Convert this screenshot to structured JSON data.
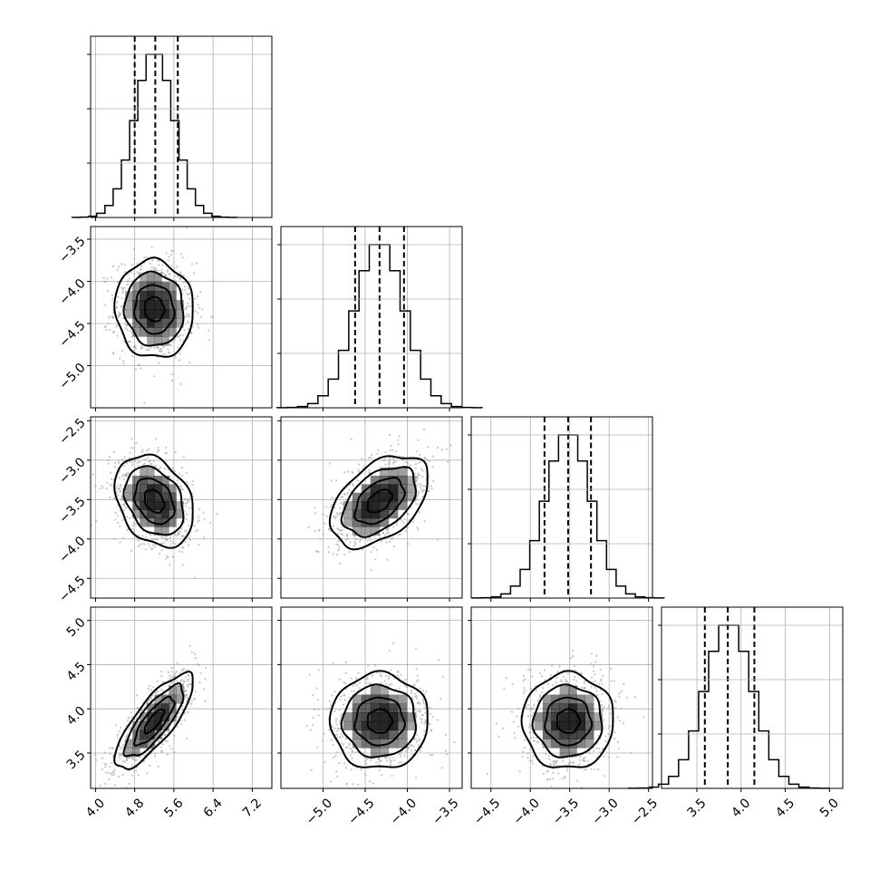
{
  "chart_data": {
    "type": "corner",
    "title": "",
    "parameters": [
      {
        "name": "",
        "range": [
          3.9,
          7.6
        ],
        "ticks": [
          4.0,
          4.8,
          5.6,
          6.4,
          7.2
        ],
        "tick_labels": [
          "4.0",
          "4.8",
          "5.6",
          "6.4",
          "7.2"
        ],
        "mean": 5.2,
        "sd": 0.4,
        "quantiles": [
          4.8,
          5.22,
          5.68
        ]
      },
      {
        "name": "",
        "range": [
          -5.5,
          -3.35
        ],
        "ticks": [
          -5.0,
          -4.5,
          -4.0,
          -3.5
        ],
        "tick_labels": [
          "−5.0",
          "−4.5",
          "−4.0",
          "−3.5"
        ],
        "mean": -4.33,
        "sd": 0.29,
        "quantiles": [
          -4.62,
          -4.33,
          -4.04
        ]
      },
      {
        "name": "",
        "range": [
          -4.75,
          -2.45
        ],
        "ticks": [
          -4.5,
          -4.0,
          -3.5,
          -3.0,
          -2.5
        ],
        "tick_labels": [
          "−4.5",
          "−4.0",
          "−3.5",
          "−3.0",
          "−2.5"
        ],
        "mean": -3.52,
        "sd": 0.29,
        "quantiles": [
          -3.82,
          -3.52,
          -3.23
        ]
      },
      {
        "name": "",
        "range": [
          3.1,
          5.15
        ],
        "ticks": [
          3.5,
          4.0,
          4.5,
          5.0
        ],
        "tick_labels": [
          "3.5",
          "4.0",
          "4.5",
          "5.0"
        ],
        "mean": 3.86,
        "sd": 0.27,
        "quantiles": [
          3.59,
          3.85,
          4.15
        ]
      }
    ],
    "correlations": {
      "1-0": -0.05,
      "2-0": -0.3,
      "2-1": 0.45,
      "3-0": 0.8,
      "3-1": 0.0,
      "3-2": 0.0
    },
    "contour_levels_sigma": [
      0.5,
      1.0,
      1.5,
      2.0
    ],
    "marginal_histogram": {
      "1d_bins": 20,
      "quantile_lines": "dashed"
    },
    "grid": true,
    "colors": {
      "line": "#000000",
      "points": "#999999",
      "density": "#000000",
      "grid": "#b0b0b0"
    }
  }
}
